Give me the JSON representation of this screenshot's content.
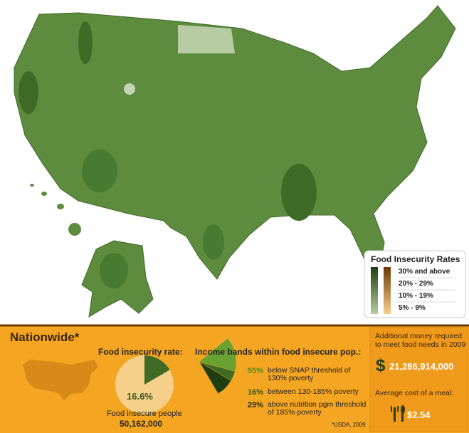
{
  "legend": {
    "title": "Food Insecurity Rates",
    "items": [
      "30% and above",
      "20% - 29%",
      "10% - 19%",
      "5% - 9%"
    ]
  },
  "nationwide": {
    "title": "Nationwide*",
    "rate": {
      "heading": "Food insecurity rate:",
      "value": 16.6,
      "label": "16.6%",
      "people_label": "Food insecure people",
      "people": "50,162,000"
    },
    "bands": {
      "heading": "Income bands within food insecure pop.:",
      "items": [
        {
          "value": 55,
          "label": "55%",
          "text": "below SNAP threshold of 130% poverty"
        },
        {
          "value": 16,
          "label": "16%",
          "text": "between 130-185% poverty"
        },
        {
          "value": 29,
          "label": "29%",
          "text": "above nutrition pgm threshold of 185% poverty"
        }
      ]
    },
    "source": "*USDA, 2009"
  },
  "money": {
    "heading": "Additional money required to meet food needs in 2009",
    "currency": "$",
    "amount": "21,286,914,000",
    "meal_label": "Average cost of a meal:",
    "meal_cost": "$2.54"
  }
}
